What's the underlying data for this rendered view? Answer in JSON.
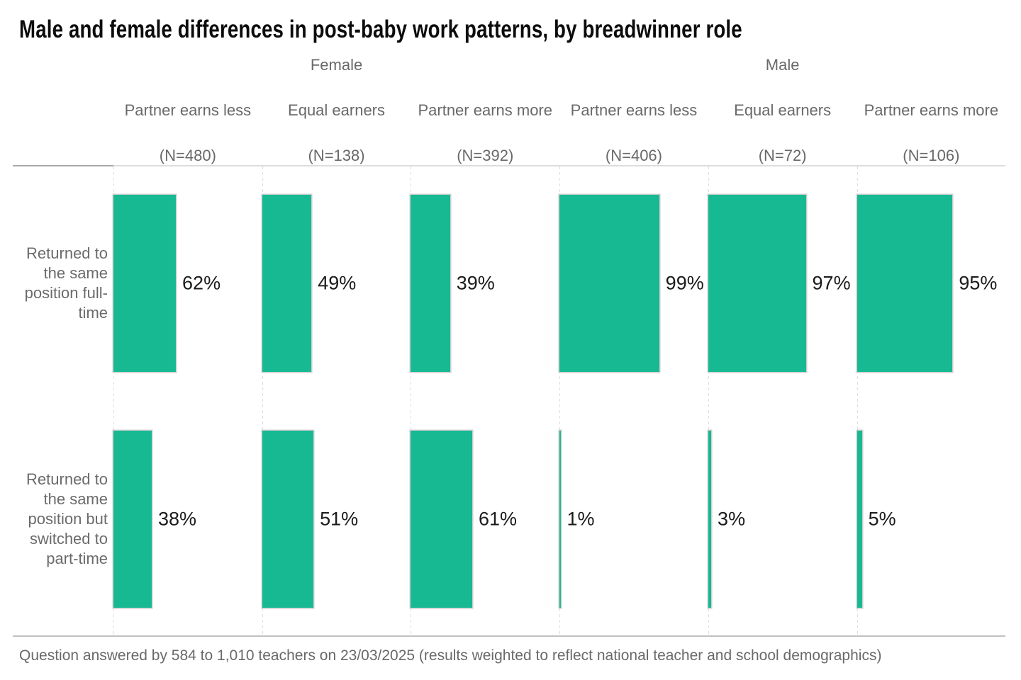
{
  "chart_data": {
    "type": "bar",
    "title": "Male and female differences in post-baby work patterns, by breadwinner role",
    "orientation": "horizontal",
    "unit": "%",
    "value_suffix": "%",
    "axis_range": [
      0,
      100
    ],
    "grid": "dashed-vertical-per-column",
    "legend_position": "none",
    "bar_color": "#16b992",
    "groups": [
      {
        "label": "Female",
        "first_column": 0,
        "column_count": 3
      },
      {
        "label": "Male",
        "first_column": 3,
        "column_count": 3
      }
    ],
    "columns": [
      {
        "group": "Female",
        "label": "Partner earns less",
        "n": 480
      },
      {
        "group": "Female",
        "label": "Equal earners",
        "n": 138
      },
      {
        "group": "Female",
        "label": "Partner earns more",
        "n": 392
      },
      {
        "group": "Male",
        "label": "Partner earns less",
        "n": 406
      },
      {
        "group": "Male",
        "label": "Equal earners",
        "n": 72
      },
      {
        "group": "Male",
        "label": "Partner earns more",
        "n": 106
      }
    ],
    "rows": [
      {
        "label": "Returned to the same position full-time",
        "values": [
          62,
          49,
          39,
          99,
          97,
          95
        ]
      },
      {
        "label": "Returned to the same position but switched to part-time",
        "values": [
          38,
          51,
          61,
          1,
          3,
          5
        ]
      }
    ],
    "footnote": "Question answered by 584 to 1,010 teachers on 23/03/2025 (results weighted to reflect national teacher and school demographics)"
  }
}
